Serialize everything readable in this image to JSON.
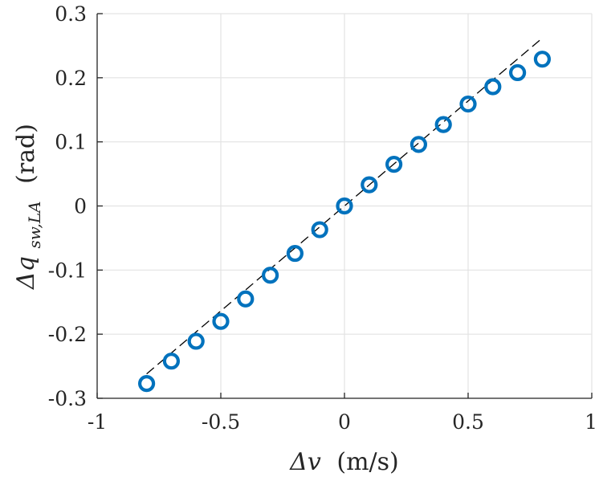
{
  "chart_data": {
    "type": "scatter",
    "xlim": [
      -1,
      1
    ],
    "ylim": [
      -0.3,
      0.3
    ],
    "xticks": [
      -1,
      -0.5,
      0,
      0.5,
      1
    ],
    "yticks": [
      -0.3,
      -0.2,
      -0.1,
      0,
      0.1,
      0.2,
      0.3
    ],
    "xtick_labels": [
      "-1",
      "-0.5",
      "0",
      "0.5",
      "1"
    ],
    "ytick_labels": [
      "-0.3",
      "-0.2",
      "-0.1",
      "0",
      "0.1",
      "0.2",
      "0.3"
    ],
    "xlabel": {
      "main": "Δv",
      "unit": "(m/s)"
    },
    "ylabel": {
      "main": "Δq",
      "subscript": "sw,LA",
      "unit": "(rad)"
    },
    "grid": true,
    "series": [
      {
        "marker": "circle-open",
        "color": "#0072BD",
        "x": [
          -0.8,
          -0.7,
          -0.6,
          -0.5,
          -0.4,
          -0.3,
          -0.2,
          -0.1,
          0,
          0.1,
          0.2,
          0.3,
          0.4,
          0.5,
          0.6,
          0.7,
          0.8
        ],
        "y": [
          -0.277,
          -0.242,
          -0.211,
          -0.18,
          -0.145,
          -0.108,
          -0.074,
          -0.037,
          0,
          0.033,
          0.065,
          0.096,
          0.127,
          0.159,
          0.186,
          0.208,
          0.229
        ]
      }
    ],
    "reference_line": {
      "style": "dashed",
      "color": "#000000",
      "x": [
        -0.8,
        0.8
      ],
      "y": [
        -0.262,
        0.262
      ]
    }
  }
}
